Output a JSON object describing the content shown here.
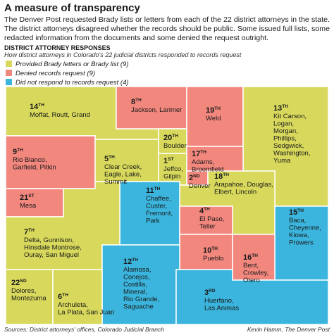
{
  "title": "A measure of transparency",
  "intro": [
    "The Denver Post requested Brady lists or letters from each of the 22 district attorneys in the state.",
    "The district attorneys disagreed whether the records should be public. Some issued full lists, some",
    "redacted information from the documents and some denied the request outright."
  ],
  "section_title": "DISTRICT ATTORNEY RESPONSES",
  "subtitle": "How district attorneys in Colorado's 22 judicial districts responded to records request",
  "legend": [
    {
      "label": "Provided Brady letters or Brady list (9)",
      "color": "#d8d95c"
    },
    {
      "label": "Denied records request (9)",
      "color": "#f2877e"
    },
    {
      "label": "Did not respond to records request (4)",
      "color": "#3bb5dd"
    }
  ],
  "districts": [
    {
      "number": "14",
      "suffix": "TH",
      "counties": [
        "Moffat, Routt, Grand"
      ],
      "response": 0
    },
    {
      "number": "8",
      "suffix": "TH",
      "counties": [
        "Jackson, Larimer"
      ],
      "response": 1
    },
    {
      "number": "19",
      "suffix": "TH",
      "counties": [
        "Weld"
      ],
      "response": 1
    },
    {
      "number": "13",
      "suffix": "TH",
      "counties": [
        "Kit Carson,",
        "Logan,",
        "Morgan,",
        "Phillips,",
        "Sedgwick,",
        "Washington,",
        "Yuma"
      ],
      "response": 0
    },
    {
      "number": "9",
      "suffix": "TH",
      "counties": [
        "Rio Blanco,",
        "Garfield, Pitkin"
      ],
      "response": 1
    },
    {
      "number": "5",
      "suffix": "TH",
      "counties": [
        "Clear Creek,",
        "Eagle, Lake,",
        "Summit"
      ],
      "response": 0
    },
    {
      "number": "20",
      "suffix": "TH",
      "counties": [
        "Boulder"
      ],
      "response": 0
    },
    {
      "number": "17",
      "suffix": "TH",
      "counties": [
        "Adams,",
        "Broomfield"
      ],
      "response": 1
    },
    {
      "number": "1",
      "suffix": "ST",
      "counties": [
        "Jeffco,",
        "Gilpin"
      ],
      "response": 0
    },
    {
      "number": "2",
      "suffix": "ND",
      "counties": [
        "Denver"
      ],
      "response": 1
    },
    {
      "number": "18",
      "suffix": "TH",
      "counties": [
        "Arapahoe, Douglas,",
        "Elbert, Lincoln"
      ],
      "response": 0
    },
    {
      "number": "21",
      "suffix": "ST",
      "counties": [
        "Mesa"
      ],
      "response": 1
    },
    {
      "number": "11",
      "suffix": "TH",
      "counties": [
        "Chaffee,",
        "Custer,",
        "Fremont,",
        "Park"
      ],
      "response": 2
    },
    {
      "number": "4",
      "suffix": "TH",
      "counties": [
        "El Paso,",
        "Teller"
      ],
      "response": 1
    },
    {
      "number": "15",
      "suffix": "TH",
      "counties": [
        "Baca,",
        "Cheyenne,",
        "Kiowa,",
        "Prowers"
      ],
      "response": 2
    },
    {
      "number": "7",
      "suffix": "TH",
      "counties": [
        "Delta, Gunnison,",
        "Hinsdale Montrose,",
        "Ouray, San Miguel"
      ],
      "response": 0
    },
    {
      "number": "10",
      "suffix": "TH",
      "counties": [
        "Pueblo"
      ],
      "response": 1
    },
    {
      "number": "16",
      "suffix": "TH",
      "counties": [
        "Bent,",
        "Crowley,",
        "Otero"
      ],
      "response": 1
    },
    {
      "number": "12",
      "suffix": "TH",
      "counties": [
        "Alamosa,",
        "Conejos,",
        "Costilla,",
        "Mineral,",
        "Rio Grande,",
        "Saguache"
      ],
      "response": 2
    },
    {
      "number": "3",
      "suffix": "RD",
      "counties": [
        "Huerfano,",
        "Las Animas"
      ],
      "response": 2
    },
    {
      "number": "22",
      "suffix": "ND",
      "counties": [
        "Dolores,",
        "Montezuma"
      ],
      "response": 0
    },
    {
      "number": "6",
      "suffix": "TH",
      "counties": [
        "Archuleta,",
        "La Plata, San Juan"
      ],
      "response": 0
    }
  ],
  "source": "Sources: District attorneys' offices, Colorado Judicial Branch",
  "credit": "Kevin Hamm, The Denver Post"
}
